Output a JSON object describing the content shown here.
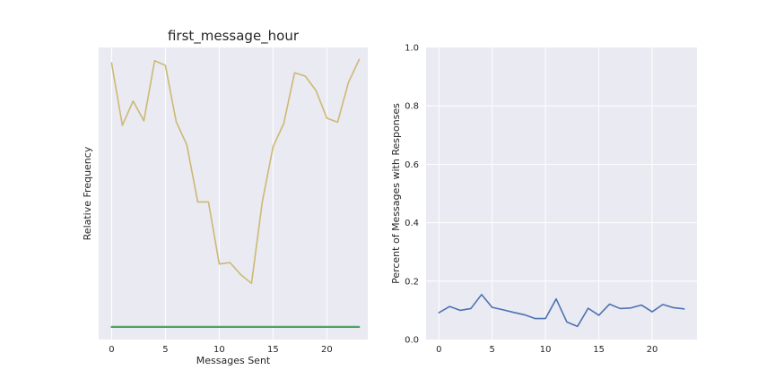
{
  "chart_data": [
    {
      "type": "line",
      "title": "first_message_hour",
      "xlabel": "Messages Sent",
      "ylabel": "Relative Frequency",
      "xlim": [
        -1.2,
        23.8
      ],
      "ylim": [
        -0.004,
        0.1
      ],
      "xticks": [
        0,
        5,
        10,
        15,
        20
      ],
      "show_yticks": false,
      "grid": true,
      "x": [
        0,
        1,
        2,
        3,
        4,
        5,
        6,
        7,
        8,
        9,
        10,
        11,
        12,
        13,
        14,
        15,
        16,
        17,
        18,
        19,
        20,
        21,
        22,
        23
      ],
      "series": [
        {
          "color": "#ccb974",
          "values": [
            0.0945,
            0.0723,
            0.0809,
            0.0739,
            0.0953,
            0.0936,
            0.0736,
            0.0652,
            0.045,
            0.045,
            0.0229,
            0.0234,
            0.0191,
            0.016,
            0.045,
            0.0646,
            0.073,
            0.091,
            0.0898,
            0.0846,
            0.0748,
            0.0734,
            0.0875,
            0.0957
          ]
        },
        {
          "color": "#4c72b0",
          "values": [
            0.0005,
            0.0005,
            0.0005,
            0.0005,
            0.0005,
            0.0005,
            0.0005,
            0.0005,
            0.0005,
            0.0005,
            0.0005,
            0.0005,
            0.0005,
            0.0005,
            0.0005,
            0.0005,
            0.0005,
            0.0005,
            0.0005,
            0.0005,
            0.0005,
            0.0005,
            0.0005,
            0.0005
          ]
        },
        {
          "color": "#c44e52",
          "values": [
            0.0004,
            0.0004,
            0.0004,
            0.0004,
            0.0004,
            0.0004,
            0.0004,
            0.0004,
            0.0004,
            0.0004,
            0.0004,
            0.0004,
            0.0004,
            0.0004,
            0.0004,
            0.0004,
            0.0004,
            0.0004,
            0.0004,
            0.0004,
            0.0004,
            0.0004,
            0.0004,
            0.0004
          ]
        },
        {
          "color": "#55a868",
          "values": [
            0.0006,
            0.0006,
            0.0006,
            0.0006,
            0.0006,
            0.0006,
            0.0006,
            0.0006,
            0.0006,
            0.0006,
            0.0006,
            0.0006,
            0.0006,
            0.0006,
            0.0006,
            0.0006,
            0.0006,
            0.0006,
            0.0006,
            0.0006,
            0.0006,
            0.0006,
            0.0006,
            0.0006
          ]
        }
      ]
    },
    {
      "type": "line",
      "title": "",
      "xlabel": "",
      "ylabel": "Percent of Messages with Responses",
      "xlim": [
        -1.2,
        24.2
      ],
      "ylim": [
        0.0,
        1.0
      ],
      "xticks": [
        0,
        5,
        10,
        15,
        20
      ],
      "yticks": [
        "0.0",
        "0.2",
        "0.4",
        "0.6",
        "0.8",
        "1.0"
      ],
      "show_yticks": true,
      "grid": true,
      "x": [
        0,
        1,
        2,
        3,
        4,
        5,
        6,
        7,
        8,
        9,
        10,
        11,
        12,
        13,
        14,
        15,
        16,
        17,
        18,
        19,
        20,
        21,
        22,
        23
      ],
      "series": [
        {
          "color": "#4c72b0",
          "values": [
            0.092,
            0.113,
            0.1,
            0.106,
            0.154,
            0.11,
            0.102,
            0.093,
            0.085,
            0.072,
            0.072,
            0.139,
            0.06,
            0.045,
            0.107,
            0.083,
            0.121,
            0.106,
            0.108,
            0.118,
            0.095,
            0.12,
            0.109,
            0.105
          ]
        }
      ]
    }
  ]
}
